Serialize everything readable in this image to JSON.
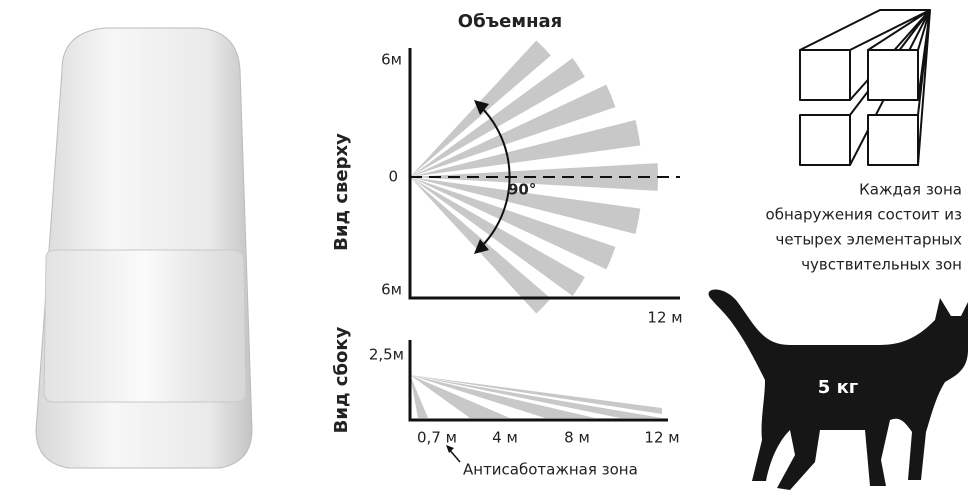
{
  "title": "Объемная",
  "top_view": {
    "label": "Вид сверху",
    "y_labels": [
      "6м",
      "0",
      "6м"
    ],
    "x_label": "12 м",
    "angle": "90°"
  },
  "side_view": {
    "label": "Вид сбоку",
    "y_label": "2,5м",
    "x_labels": [
      "0,7 м",
      "4 м",
      "8 м",
      "12 м"
    ],
    "note": "Антисаботажная зона"
  },
  "caption": {
    "lines": [
      "Каждая зона",
      "обнаружения состоит из",
      "четырех элементарных",
      "чувствительных зон"
    ]
  },
  "cat": {
    "weight": "5 кг"
  }
}
